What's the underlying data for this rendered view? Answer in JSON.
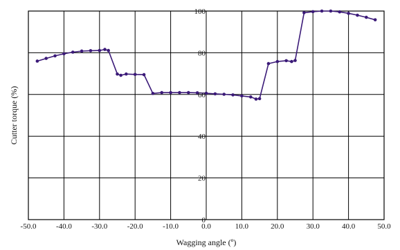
{
  "chart_data": {
    "type": "line",
    "title": "",
    "xlabel": "Wagging angle (º)",
    "ylabel": "Cutter torque (%)",
    "xlim": [
      -50,
      50
    ],
    "ylim": [
      0,
      100
    ],
    "x_ticks": [
      "-50.0",
      "-40.0",
      "-30.0",
      "-20.0",
      "-10.0",
      "0.0",
      "10.0",
      "20.0",
      "30.0",
      "40.0",
      "50.0"
    ],
    "y_ticks": [
      "0",
      "20",
      "40",
      "60",
      "80",
      "100"
    ],
    "grid": true,
    "series": [
      {
        "color": "#3b1a78",
        "points": [
          [
            -47.5,
            76
          ],
          [
            -45,
            77.3
          ],
          [
            -42.5,
            78.5
          ],
          [
            -40,
            79.5
          ],
          [
            -37.5,
            80.3
          ],
          [
            -35,
            80.8
          ],
          [
            -32.5,
            81
          ],
          [
            -30,
            81.1
          ],
          [
            -28.5,
            81.6
          ],
          [
            -27.5,
            81.1
          ],
          [
            -25,
            69.8
          ],
          [
            -24,
            69.2
          ],
          [
            -22.5,
            69.8
          ],
          [
            -20,
            69.6
          ],
          [
            -17.5,
            69.5
          ],
          [
            -15,
            60.5
          ],
          [
            -12.5,
            60.9
          ],
          [
            -10,
            60.9
          ],
          [
            -7.5,
            60.9
          ],
          [
            -5,
            60.9
          ],
          [
            -2.5,
            60.8
          ],
          [
            0,
            60.6
          ],
          [
            2.5,
            60.3
          ],
          [
            5,
            60.1
          ],
          [
            7.5,
            59.8
          ],
          [
            10,
            59.3
          ],
          [
            12.5,
            58.8
          ],
          [
            14,
            57.8
          ],
          [
            15,
            58
          ],
          [
            17.5,
            74.8
          ],
          [
            20,
            75.8
          ],
          [
            22.5,
            76.2
          ],
          [
            24,
            75.8
          ],
          [
            25,
            76.3
          ],
          [
            27.5,
            99.2
          ],
          [
            30,
            99.7
          ],
          [
            32.5,
            100
          ],
          [
            35,
            100
          ],
          [
            37.5,
            99.6
          ],
          [
            40,
            98.9
          ],
          [
            42.5,
            98
          ],
          [
            45,
            97
          ],
          [
            47.5,
            95.8
          ]
        ]
      }
    ]
  }
}
